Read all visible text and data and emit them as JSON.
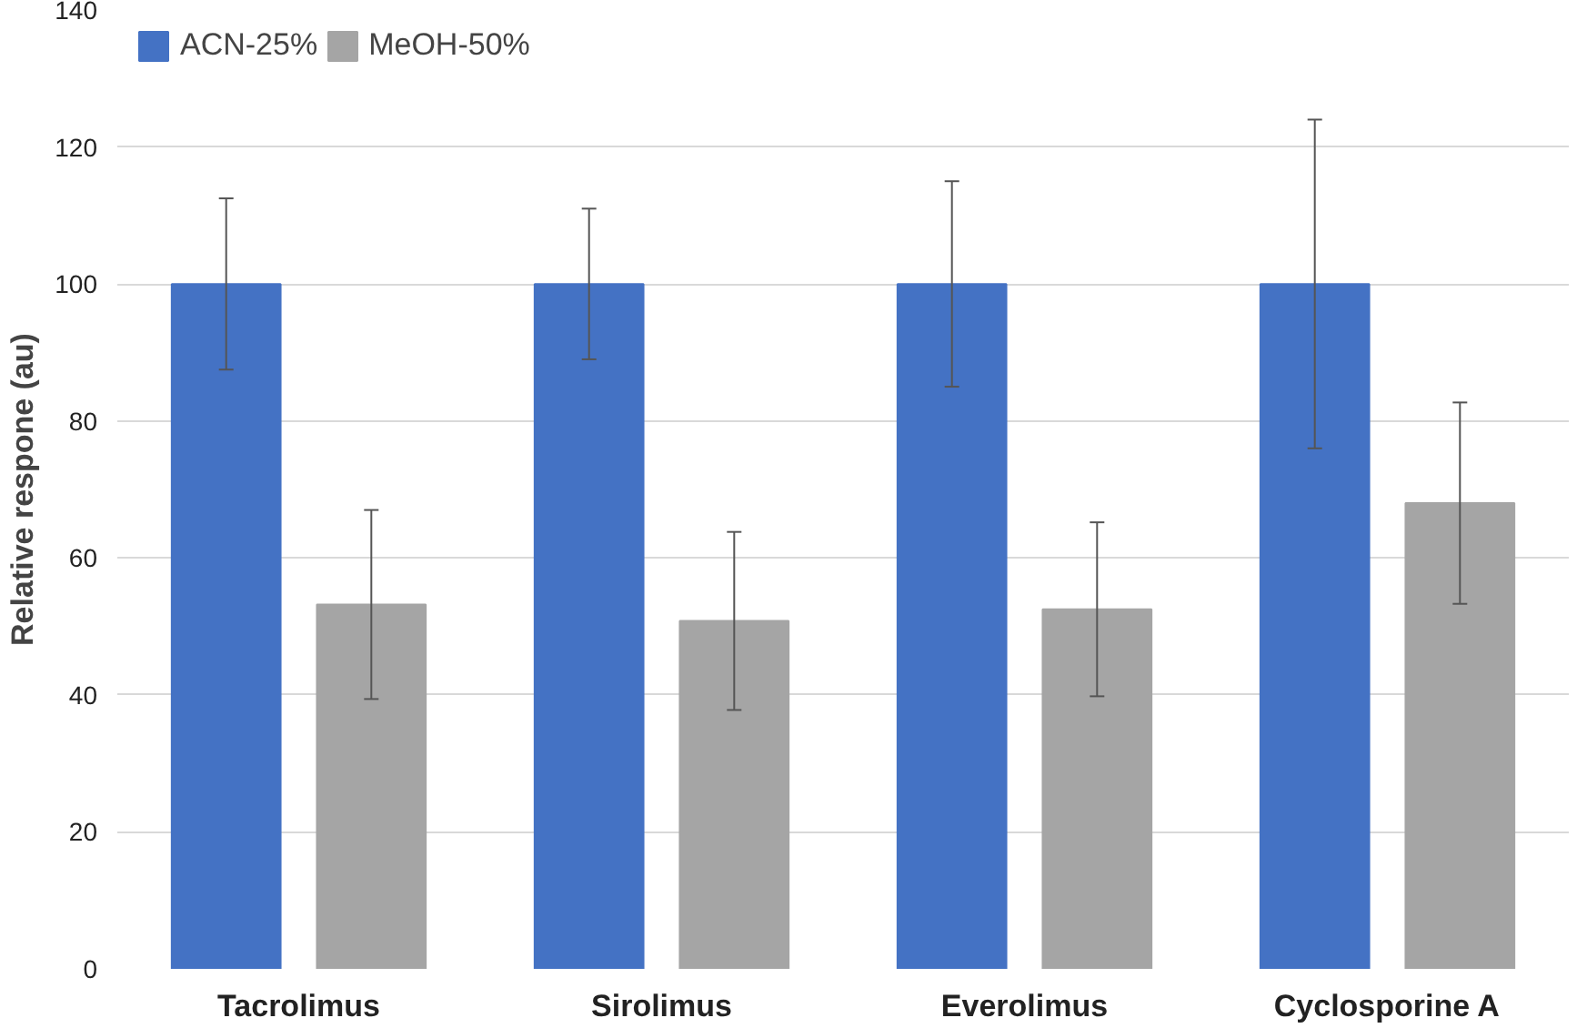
{
  "chart_data": {
    "type": "bar",
    "ylabel": "Relative respone (au)",
    "categories": [
      "Tacrolimus",
      "Sirolimus",
      "Everolimus",
      "Cyclosporine A"
    ],
    "series": [
      {
        "name": "ACN-25%",
        "color": "#4472c4",
        "values": [
          100,
          100,
          100,
          100
        ],
        "errors": [
          12.5,
          11,
          15,
          24
        ]
      },
      {
        "name": "MeOH-50%",
        "color": "#a5a5a5",
        "values": [
          53.2,
          50.8,
          52.5,
          68
        ],
        "errors": [
          13.8,
          13,
          12.7,
          14.7
        ]
      }
    ],
    "ylim": [
      0,
      140
    ],
    "yticks": [
      0,
      20,
      40,
      60,
      80,
      100,
      120,
      140
    ],
    "grid": "y",
    "legend": "top left"
  }
}
